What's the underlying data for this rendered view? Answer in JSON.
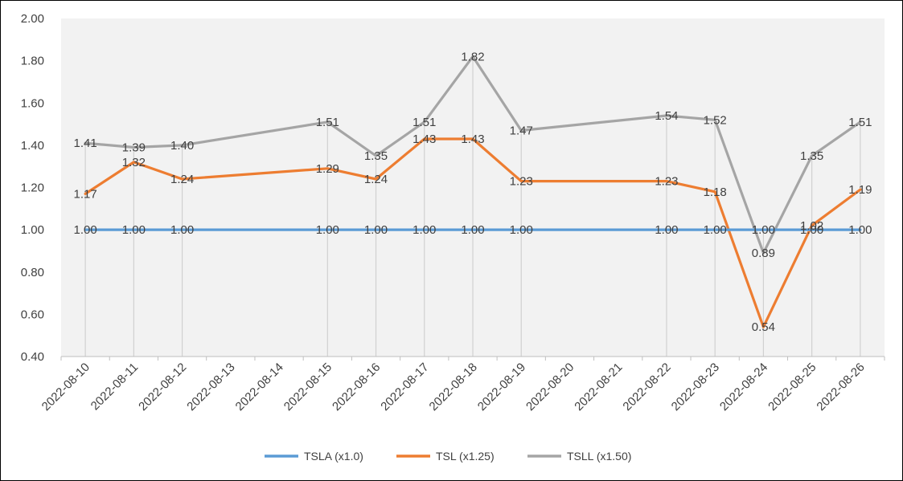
{
  "chart_data": {
    "type": "line",
    "title": "",
    "xlabel": "",
    "ylabel": "",
    "ylim": [
      0.4,
      2.0
    ],
    "yticks": [
      "0.40",
      "0.60",
      "0.80",
      "1.00",
      "1.20",
      "1.40",
      "1.60",
      "1.80",
      "2.00"
    ],
    "grid": "vertical-drop-lines",
    "legend_position": "bottom",
    "categories": [
      "2022-08-10",
      "2022-08-11",
      "2022-08-12",
      "2022-08-13",
      "2022-08-14",
      "2022-08-15",
      "2022-08-16",
      "2022-08-17",
      "2022-08-18",
      "2022-08-19",
      "2022-08-20",
      "2022-08-21",
      "2022-08-22",
      "2022-08-23",
      "2022-08-24",
      "2022-08-25",
      "2022-08-26"
    ],
    "series": [
      {
        "name": "TSLA (x1.0)",
        "color": "#5B9BD5",
        "values": [
          1.0,
          1.0,
          1.0,
          null,
          null,
          1.0,
          1.0,
          1.0,
          1.0,
          1.0,
          null,
          null,
          1.0,
          1.0,
          1.0,
          1.0,
          1.0
        ],
        "labels": [
          "1.00",
          "1.00",
          "1.00",
          null,
          null,
          "1.00",
          "1.00",
          "1.00",
          "1.00",
          "1.00",
          null,
          null,
          "1.00",
          "1.00",
          "1.00",
          "1.00",
          "1.00"
        ]
      },
      {
        "name": "TSL (x1.25)",
        "color": "#ED7D31",
        "values": [
          1.17,
          1.32,
          1.24,
          null,
          null,
          1.29,
          1.24,
          1.43,
          1.43,
          1.23,
          null,
          null,
          1.23,
          1.18,
          0.54,
          1.02,
          1.19
        ],
        "labels": [
          "1.17",
          "1.32",
          "1.24",
          null,
          null,
          "1.29",
          "1.24",
          "1.43",
          "1.43",
          "1.23",
          null,
          null,
          "1.23",
          "1.18",
          "0.54",
          "1.02",
          "1.19"
        ]
      },
      {
        "name": "TSLL (x1.50)",
        "color": "#A5A5A5",
        "values": [
          1.41,
          1.39,
          1.4,
          null,
          null,
          1.51,
          1.35,
          1.51,
          1.82,
          1.47,
          null,
          null,
          1.54,
          1.52,
          0.89,
          1.35,
          1.51
        ],
        "labels": [
          "1.41",
          "1.39",
          "1.40",
          null,
          null,
          "1.51",
          "1.35",
          "1.51",
          "1.82",
          "1.47",
          null,
          null,
          "1.54",
          "1.52",
          "0.89",
          "1.35",
          "1.51"
        ]
      }
    ]
  }
}
